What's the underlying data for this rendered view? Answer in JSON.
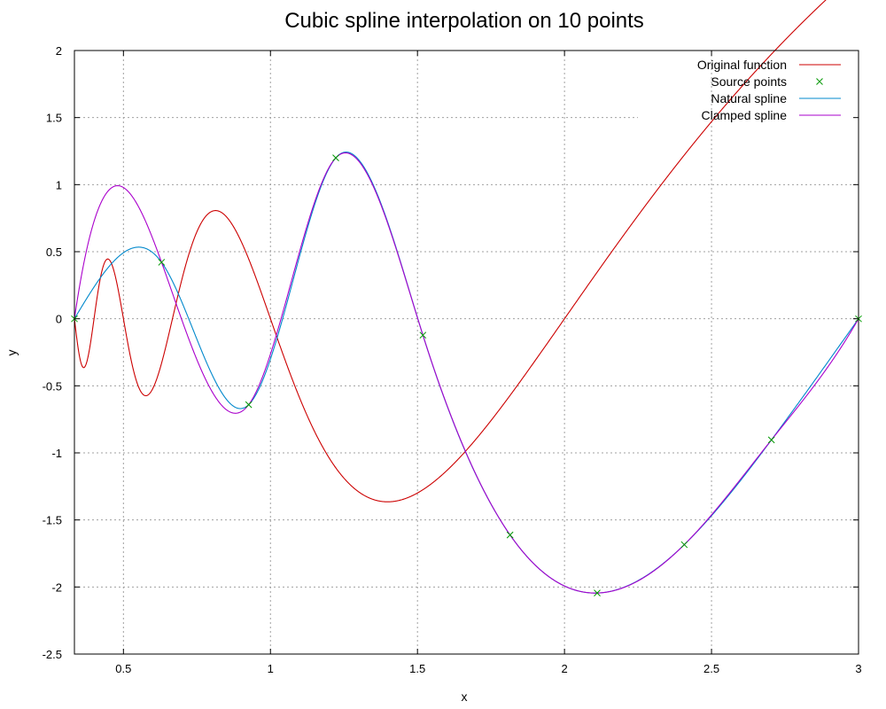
{
  "chart_data": {
    "type": "line",
    "title": "Cubic spline interpolation on 10 points",
    "xlabel": "x",
    "ylabel": "y",
    "xlim": [
      0.3333,
      3.0
    ],
    "ylim": [
      -2.5,
      2.0
    ],
    "grid": true,
    "legend_position": "top-right",
    "x_ticks": [
      {
        "value": 0.5,
        "label": "0.5"
      },
      {
        "value": 1.0,
        "label": "1"
      },
      {
        "value": 1.5,
        "label": "1.5"
      },
      {
        "value": 2.0,
        "label": "2"
      },
      {
        "value": 2.5,
        "label": "2.5"
      },
      {
        "value": 3.0,
        "label": "3"
      }
    ],
    "y_ticks": [
      {
        "value": -2.5,
        "label": "-2.5"
      },
      {
        "value": -2.0,
        "label": "-2"
      },
      {
        "value": -1.5,
        "label": "-1.5"
      },
      {
        "value": -1.0,
        "label": "-1"
      },
      {
        "value": -0.5,
        "label": "-0.5"
      },
      {
        "value": 0.0,
        "label": "0"
      },
      {
        "value": 0.5,
        "label": "0.5"
      },
      {
        "value": 1.0,
        "label": "1"
      },
      {
        "value": 1.5,
        "label": "1.5"
      },
      {
        "value": 2.0,
        "label": "2"
      }
    ],
    "series": [
      {
        "name": "Original function",
        "style": "line",
        "color": "#cc0000",
        "function": "x*sin(2*pi/x)"
      },
      {
        "name": "Source points",
        "style": "points",
        "marker": "x",
        "color": "#009900",
        "x": [
          0.3333,
          0.6296,
          0.9259,
          1.2222,
          1.5185,
          1.8148,
          2.1111,
          2.4074,
          2.7037,
          3.0
        ],
        "y": [
          0.0,
          0.421,
          -0.6407,
          1.1995,
          -0.1224,
          -1.6118,
          -2.0449,
          -1.6843,
          -0.9034,
          0.0
        ]
      },
      {
        "name": "Natural spline",
        "style": "line",
        "color": "#0088cc",
        "boundary": "natural"
      },
      {
        "name": "Clamped spline",
        "style": "line",
        "color": "#aa00cc",
        "boundary": "clamped",
        "end_slopes": [
          15.0,
          3.83
        ]
      }
    ]
  }
}
